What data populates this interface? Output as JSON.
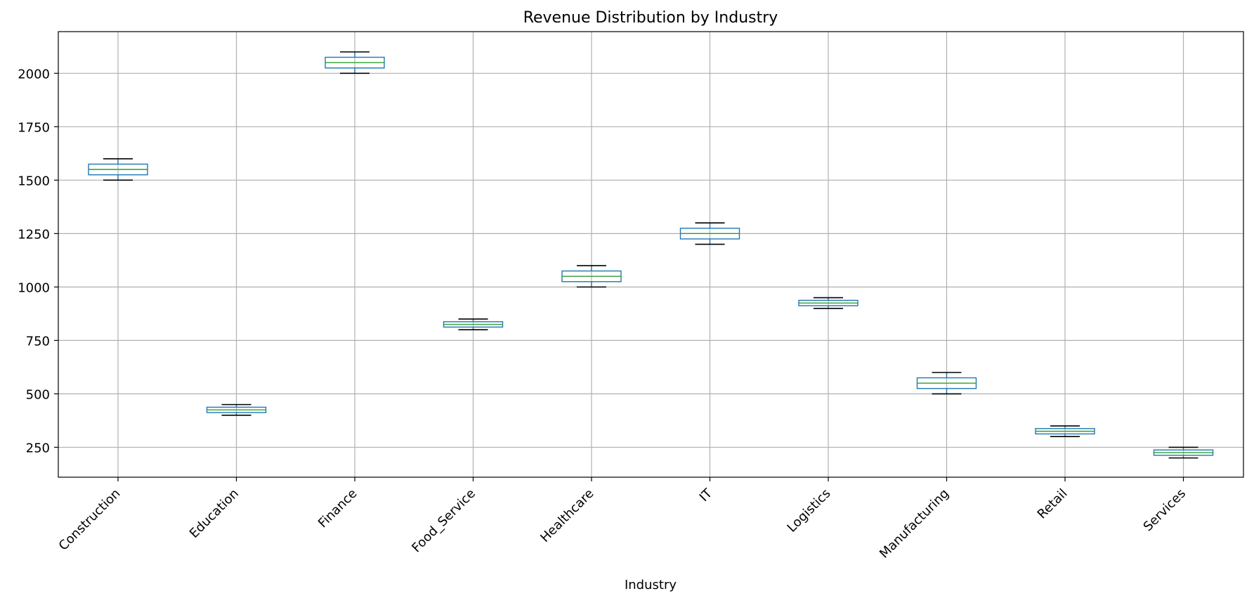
{
  "chart_data": {
    "type": "box",
    "title": "Revenue Distribution by Industry",
    "xlabel": "Industry",
    "ylabel": "",
    "ylim": [
      110,
      2195
    ],
    "yticks": [
      250,
      500,
      750,
      1000,
      1250,
      1500,
      1750,
      2000
    ],
    "grid": true,
    "categories": [
      "Construction",
      "Education",
      "Finance",
      "Food_Service",
      "Healthcare",
      "IT",
      "Logistics",
      "Manufacturing",
      "Retail",
      "Services"
    ],
    "boxes": [
      {
        "min": 1500,
        "q1": 1525,
        "median": 1550,
        "q3": 1575,
        "max": 1600
      },
      {
        "min": 400,
        "q1": 412.5,
        "median": 425,
        "q3": 437.5,
        "max": 450
      },
      {
        "min": 2000,
        "q1": 2025,
        "median": 2050,
        "q3": 2075,
        "max": 2100
      },
      {
        "min": 800,
        "q1": 812.5,
        "median": 825,
        "q3": 837.5,
        "max": 850
      },
      {
        "min": 1000,
        "q1": 1025,
        "median": 1050,
        "q3": 1075,
        "max": 1100
      },
      {
        "min": 1200,
        "q1": 1225,
        "median": 1250,
        "q3": 1275,
        "max": 1300
      },
      {
        "min": 900,
        "q1": 912.5,
        "median": 925,
        "q3": 937.5,
        "max": 950
      },
      {
        "min": 500,
        "q1": 525,
        "median": 550,
        "q3": 575,
        "max": 600
      },
      {
        "min": 300,
        "q1": 312.5,
        "median": 325,
        "q3": 337.5,
        "max": 350
      },
      {
        "min": 200,
        "q1": 212.5,
        "median": 225,
        "q3": 237.5,
        "max": 250
      }
    ],
    "colors": {
      "box": "#1f77b4",
      "median": "#2ca02c",
      "whisker": "#000000",
      "grid": "#b0b0b0"
    }
  }
}
